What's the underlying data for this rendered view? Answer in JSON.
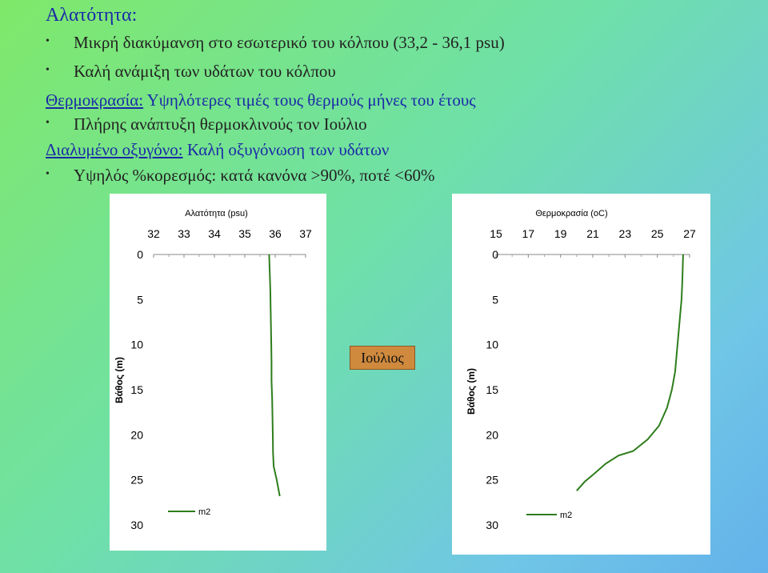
{
  "slide": {
    "title": "Αλατότητα:",
    "lines": [
      {
        "kind": "bullet",
        "label": "",
        "text": "Μικρή διακύμανση στο εσωτερικό του κόλπου (33,2 - 36,1 psu)"
      },
      {
        "kind": "bullet",
        "label": "",
        "text": "Καλή ανάμιξη των υδάτων του κόλπου"
      },
      {
        "kind": "heading",
        "label": "Θερμοκρασία:",
        "text": " Υψηλότερες τιμές τους θερμούς μήνες του έτους"
      },
      {
        "kind": "bullet",
        "label": "",
        "text": "Πλήρης ανάπτυξη θερμοκλινούς τον Ιούλιο"
      },
      {
        "kind": "heading",
        "label": "Διαλυμένο οξυγόνο:",
        "text": " Καλή οξυγόνωση των υδάτων"
      },
      {
        "kind": "bullet",
        "label": "",
        "text": "Υψηλός %κορεσμός: κατά κανόνα >90%, ποτέ <60%"
      }
    ],
    "bullet_char": "•",
    "month_label": "Ιούλιος"
  },
  "colors": {
    "title_blue": "#1a2aa8",
    "series_green": "#2e7d1c",
    "month_box": "#cf8a3e"
  },
  "chart_data": [
    {
      "type": "line",
      "title": "Αλατότητα (psu)",
      "xlabel": "",
      "ylabel": "Βάθος (m)",
      "x_ticks": [
        "32",
        "33",
        "34",
        "35",
        "36",
        "37"
      ],
      "y_ticks": [
        "0",
        "5",
        "10",
        "15",
        "20",
        "25",
        "30"
      ],
      "xlim": [
        32,
        37
      ],
      "ylim": [
        0,
        30
      ],
      "y_inverted": true,
      "x_axis_position": "top",
      "legend": "bottom-left",
      "series": [
        {
          "name": "m2",
          "points": [
            [
              35.8,
              0
            ],
            [
              35.82,
              2
            ],
            [
              35.84,
              4
            ],
            [
              35.85,
              6
            ],
            [
              35.86,
              8
            ],
            [
              35.87,
              10
            ],
            [
              35.88,
              12
            ],
            [
              35.88,
              14
            ],
            [
              35.9,
              16
            ],
            [
              35.91,
              18
            ],
            [
              35.92,
              20
            ],
            [
              35.93,
              22
            ],
            [
              35.95,
              23.5
            ],
            [
              36.05,
              25
            ],
            [
              36.15,
              26.8
            ]
          ]
        }
      ]
    },
    {
      "type": "line",
      "title": "Θερμοκρασία (oC)",
      "xlabel": "",
      "ylabel": "Βάθος (m)",
      "x_ticks": [
        "15",
        "17",
        "19",
        "21",
        "23",
        "25",
        "27"
      ],
      "y_ticks": [
        "0",
        "5",
        "10",
        "15",
        "20",
        "25",
        "30"
      ],
      "xlim": [
        15,
        27
      ],
      "ylim": [
        0,
        30
      ],
      "y_inverted": true,
      "x_axis_position": "top",
      "legend": "bottom-right",
      "series": [
        {
          "name": "m2",
          "points": [
            [
              26.6,
              0
            ],
            [
              26.55,
              3
            ],
            [
              26.5,
              5
            ],
            [
              26.4,
              7
            ],
            [
              26.3,
              9
            ],
            [
              26.2,
              11
            ],
            [
              26.1,
              13
            ],
            [
              25.9,
              15
            ],
            [
              25.6,
              17
            ],
            [
              25.1,
              19
            ],
            [
              24.4,
              20.5
            ],
            [
              23.5,
              21.8
            ],
            [
              22.6,
              22.3
            ],
            [
              21.8,
              23.2
            ],
            [
              21.1,
              24.3
            ],
            [
              20.5,
              25.2
            ],
            [
              20.0,
              26.2
            ]
          ]
        }
      ]
    }
  ]
}
